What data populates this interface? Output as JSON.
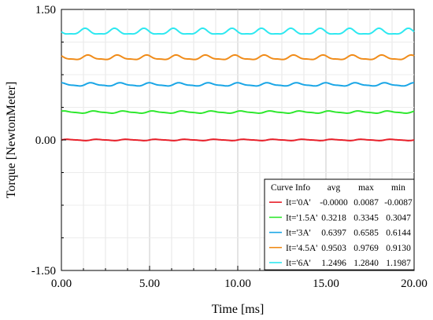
{
  "chart_data": {
    "type": "line",
    "xlabel": "Time [ms]",
    "ylabel": "Torque [NewtonMeter]",
    "xlim": [
      0,
      20
    ],
    "ylim": [
      -1.5,
      1.5
    ],
    "x_ticks": [
      "0.00",
      "5.00",
      "10.00",
      "15.00",
      "20.00"
    ],
    "y_ticks": [
      "1.50",
      "0.00",
      "-1.50"
    ],
    "grid": true,
    "ripple_periods": 12,
    "legend": {
      "placement": "bottom-right",
      "headers": [
        "Curve Info",
        "avg",
        "max",
        "min"
      ]
    },
    "series": [
      {
        "name": "It='0A'",
        "color": "#e8202a",
        "avg": "-0.0000",
        "max": "0.0087",
        "min": "-0.0087"
      },
      {
        "name": "It='1.5A'",
        "color": "#2ee82e",
        "avg": "0.3218",
        "max": "0.3345",
        "min": "0.3047"
      },
      {
        "name": "It='3A'",
        "color": "#1aa6e6",
        "avg": "0.6397",
        "max": "0.6585",
        "min": "0.6144"
      },
      {
        "name": "It='4.5A'",
        "color": "#f08c1a",
        "avg": "0.9503",
        "max": "0.9769",
        "min": "0.9130"
      },
      {
        "name": "It='6A'",
        "color": "#2ee8f0",
        "avg": "1.2496",
        "max": "1.2840",
        "min": "1.1987"
      }
    ]
  }
}
